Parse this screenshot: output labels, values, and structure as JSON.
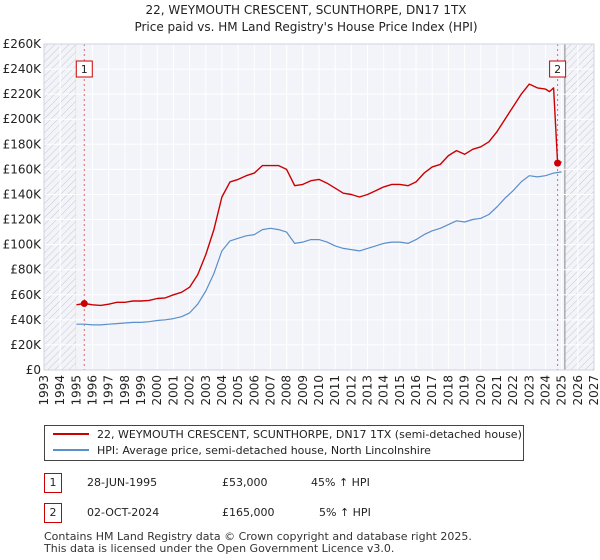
{
  "chart_data": {
    "type": "line",
    "title": "22, WEYMOUTH CRESCENT, SCUNTHORPE, DN17 1TX",
    "subtitle": "Price paid vs. HM Land Registry's House Price Index (HPI)",
    "xlim": [
      1993,
      2027
    ],
    "ylim": [
      0,
      260000
    ],
    "y_ticks": [
      0,
      20000,
      40000,
      60000,
      80000,
      100000,
      120000,
      140000,
      160000,
      180000,
      200000,
      220000,
      240000,
      260000
    ],
    "y_tick_labels": [
      "£0",
      "£20K",
      "£40K",
      "£60K",
      "£80K",
      "£100K",
      "£120K",
      "£140K",
      "£160K",
      "£180K",
      "£200K",
      "£220K",
      "£240K",
      "£260K"
    ],
    "x_ticks": [
      1993,
      1994,
      1995,
      1996,
      1997,
      1998,
      1999,
      2000,
      2001,
      2002,
      2003,
      2004,
      2005,
      2006,
      2007,
      2008,
      2009,
      2010,
      2011,
      2012,
      2013,
      2014,
      2015,
      2016,
      2017,
      2018,
      2019,
      2020,
      2021,
      2022,
      2023,
      2024,
      2025,
      2026,
      2027
    ],
    "x_tick_labels": [
      "1993",
      "1994",
      "1995",
      "1996",
      "1997",
      "1998",
      "1999",
      "2000",
      "2001",
      "2002",
      "2003",
      "2004",
      "2005",
      "2006",
      "2007",
      "2008",
      "2009",
      "2010",
      "2011",
      "2012",
      "2013",
      "2014",
      "2015",
      "2016",
      "2017",
      "2018",
      "2019",
      "2020",
      "2021",
      "2022",
      "2023",
      "2024",
      "2025",
      "2026",
      "2027"
    ],
    "data_range": [
      1995.0,
      2025.2
    ],
    "series": [
      {
        "name": "22, WEYMOUTH CRESCENT, SCUNTHORPE, DN17 1TX (semi-detached house)",
        "color": "#cc0000",
        "x": [
          1995.0,
          1995.5,
          1996.0,
          1996.5,
          1997.0,
          1997.5,
          1998.0,
          1998.5,
          1999.0,
          1999.5,
          2000.0,
          2000.5,
          2001.0,
          2001.5,
          2002.0,
          2002.5,
          2003.0,
          2003.5,
          2004.0,
          2004.5,
          2005.0,
          2005.5,
          2006.0,
          2006.5,
          2007.0,
          2007.5,
          2008.0,
          2008.5,
          2009.0,
          2009.5,
          2010.0,
          2010.5,
          2011.0,
          2011.5,
          2012.0,
          2012.5,
          2013.0,
          2013.5,
          2014.0,
          2014.5,
          2015.0,
          2015.5,
          2016.0,
          2016.5,
          2017.0,
          2017.5,
          2018.0,
          2018.5,
          2019.0,
          2019.5,
          2020.0,
          2020.5,
          2021.0,
          2021.5,
          2022.0,
          2022.5,
          2023.0,
          2023.5,
          2024.0,
          2024.25,
          2024.5,
          2024.75,
          2025.0
        ],
        "values": [
          52000,
          53000,
          52000,
          51500,
          52500,
          54000,
          54000,
          55000,
          55000,
          55500,
          57000,
          57500,
          60000,
          62000,
          66000,
          76000,
          92000,
          112000,
          138000,
          150000,
          152000,
          155000,
          157000,
          163000,
          163000,
          163000,
          160000,
          147000,
          148000,
          151000,
          152000,
          149000,
          145000,
          141000,
          140000,
          138000,
          140000,
          143000,
          146000,
          148000,
          148000,
          147000,
          150000,
          157000,
          162000,
          164000,
          171000,
          175000,
          172000,
          176000,
          178000,
          182000,
          190000,
          200000,
          210000,
          220000,
          228000,
          225000,
          224000,
          222000,
          225000,
          165000,
          166000
        ]
      },
      {
        "name": "HPI: Average price, semi-detached house, North Lincolnshire",
        "color": "#5b8fc9",
        "x": [
          1995.0,
          1995.5,
          1996.0,
          1996.5,
          1997.0,
          1997.5,
          1998.0,
          1998.5,
          1999.0,
          1999.5,
          2000.0,
          2000.5,
          2001.0,
          2001.5,
          2002.0,
          2002.5,
          2003.0,
          2003.5,
          2004.0,
          2004.5,
          2005.0,
          2005.5,
          2006.0,
          2006.5,
          2007.0,
          2007.5,
          2008.0,
          2008.5,
          2009.0,
          2009.5,
          2010.0,
          2010.5,
          2011.0,
          2011.5,
          2012.0,
          2012.5,
          2013.0,
          2013.5,
          2014.0,
          2014.5,
          2015.0,
          2015.5,
          2016.0,
          2016.5,
          2017.0,
          2017.5,
          2018.0,
          2018.5,
          2019.0,
          2019.5,
          2020.0,
          2020.5,
          2021.0,
          2021.5,
          2022.0,
          2022.5,
          2023.0,
          2023.5,
          2024.0,
          2024.5,
          2025.0
        ],
        "values": [
          36500,
          36500,
          36000,
          36000,
          36500,
          37000,
          37500,
          38000,
          38000,
          38500,
          39500,
          40000,
          41000,
          42500,
          45500,
          52500,
          63000,
          77000,
          95000,
          103000,
          105000,
          107000,
          108000,
          112000,
          113000,
          112000,
          110000,
          101000,
          102000,
          104000,
          104000,
          102000,
          99000,
          97000,
          96000,
          95000,
          97000,
          99000,
          101000,
          102000,
          102000,
          101000,
          104000,
          108000,
          111000,
          113000,
          116000,
          119000,
          118000,
          120000,
          121000,
          124000,
          130000,
          137000,
          143000,
          150000,
          155000,
          154000,
          155000,
          157000,
          158000
        ]
      }
    ],
    "annotations": [
      {
        "label": "1",
        "x": 1995.49,
        "y": 53000,
        "date": "28-JUN-1995",
        "price": "£53,000",
        "hpi": "45% ↑ HPI"
      },
      {
        "label": "2",
        "x": 2024.75,
        "y": 165000,
        "date": "02-OCT-2024",
        "price": "£165,000",
        "hpi": "5% ↑ HPI"
      }
    ],
    "hatched_regions": [
      [
        1993,
        1995.0
      ],
      [
        2025.2,
        2027
      ]
    ],
    "grid": true,
    "legend_position": "bottom"
  },
  "footer": {
    "line1": "Contains HM Land Registry data © Crown copyright and database right 2025.",
    "line2": "This data is licensed under the Open Government Licence v3.0."
  }
}
